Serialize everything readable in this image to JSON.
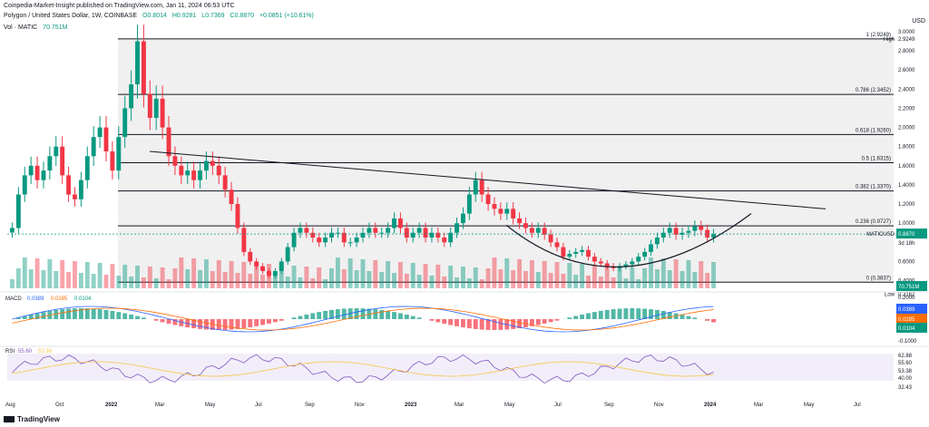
{
  "header": {
    "publisher": "Coinpedia-Market-Insight published on TradingView.com, Jan 11, 2024 06:53 UTC",
    "symbol": "Polygon / United States Dollar, 1W, COINBASE",
    "o": "O0.8014",
    "h": "H0.9281",
    "l": "L0.7369",
    "c": "C0.8870",
    "chg": "+0.0851 (+10.61%)",
    "vol_label": "Vol · MATIC",
    "vol_value": "70.751M",
    "currency": "USD"
  },
  "footer": {
    "brand": "TradingView"
  },
  "colors": {
    "up": "#089981",
    "down": "#f23645",
    "line": "#131722",
    "fib_bg": "#f0f0f0",
    "macd": "#2962ff",
    "signal": "#ff6d00",
    "rsi": "#7e57c2"
  },
  "chart_data": {
    "type": "candlestick",
    "price_axis": {
      "ticks": [
        "3.0000",
        "2.8000",
        "2.6000",
        "2.4000",
        "2.2000",
        "2.0000",
        "1.8000",
        "1.6000",
        "1.4000",
        "1.2000",
        "1.0000",
        "0.6000",
        "0.4000"
      ],
      "tick_values": [
        3.0,
        2.8,
        2.6,
        2.4,
        2.2,
        2.0,
        1.8,
        1.6,
        1.4,
        1.2,
        1.0,
        0.6,
        0.4
      ],
      "ylim": [
        0.32,
        3.0
      ]
    },
    "fib_levels": [
      {
        "label": "1 (2.9249)",
        "value": 2.9249
      },
      {
        "label": "0.786 (2.3452)",
        "value": 2.3452
      },
      {
        "label": "0.618 (1.9260)",
        "value": 1.926
      },
      {
        "label": "0.5 (1.6315)",
        "value": 1.6315
      },
      {
        "label": "0.382 (1.3370)",
        "value": 1.337
      },
      {
        "label": "0.236 (0.9727)",
        "value": 0.9727
      },
      {
        "label": "0 (0.3837)",
        "value": 0.3837
      }
    ],
    "badges": [
      {
        "label": "High",
        "value": "2.9249"
      },
      {
        "label": "MATICUSD",
        "value": "0.8870",
        "sub": "3d 18h"
      },
      {
        "label": "Low",
        "value": "0.3162"
      },
      {
        "label": "",
        "value": "70.751M"
      }
    ],
    "x_ticks": [
      "Aug",
      "Oct",
      "2022",
      "Mar",
      "May",
      "Jul",
      "Sep",
      "Nov",
      "2023",
      "Mar",
      "May",
      "Jul",
      "Sep",
      "Nov",
      "2024",
      "Mar",
      "May",
      "Jul"
    ],
    "candles_close": [
      0.95,
      1.3,
      1.5,
      1.6,
      1.45,
      1.55,
      1.7,
      1.8,
      1.5,
      1.3,
      1.25,
      1.45,
      1.7,
      1.9,
      2.0,
      1.75,
      1.55,
      1.9,
      2.2,
      2.45,
      2.9,
      2.35,
      2.1,
      2.3,
      2.0,
      1.7,
      1.6,
      1.5,
      1.55,
      1.45,
      1.55,
      1.65,
      1.6,
      1.5,
      1.35,
      1.2,
      0.95,
      0.7,
      0.6,
      0.55,
      0.5,
      0.45,
      0.5,
      0.6,
      0.75,
      0.9,
      0.95,
      0.9,
      0.85,
      0.8,
      0.85,
      0.9,
      0.9,
      0.8,
      0.8,
      0.85,
      0.9,
      0.95,
      0.9,
      0.9,
      0.95,
      1.05,
      0.95,
      0.85,
      0.9,
      0.95,
      0.85,
      0.9,
      0.85,
      0.8,
      0.9,
      1.0,
      1.1,
      1.3,
      1.45,
      1.3,
      1.2,
      1.15,
      1.1,
      1.15,
      1.05,
      1.0,
      0.95,
      0.9,
      0.95,
      0.88,
      0.8,
      0.75,
      0.65,
      0.68,
      0.7,
      0.72,
      0.65,
      0.6,
      0.58,
      0.55,
      0.53,
      0.55,
      0.57,
      0.6,
      0.65,
      0.7,
      0.78,
      0.85,
      0.9,
      0.95,
      0.88,
      0.9,
      0.92,
      0.97,
      0.93,
      0.85,
      0.887
    ],
    "macd_labels": {
      "name": "MACD",
      "a": "0.0389",
      "b": "0.0285",
      "c": "0.0104"
    },
    "macd_axis": [
      "0.2000",
      "0.1000",
      "-0.1000"
    ],
    "rsi_labels": {
      "name": "RSI",
      "a": "55.60",
      "b": "53.38"
    },
    "rsi_axis": [
      "62.88",
      "55.60",
      "53.38",
      "40.00",
      "32.43"
    ]
  }
}
